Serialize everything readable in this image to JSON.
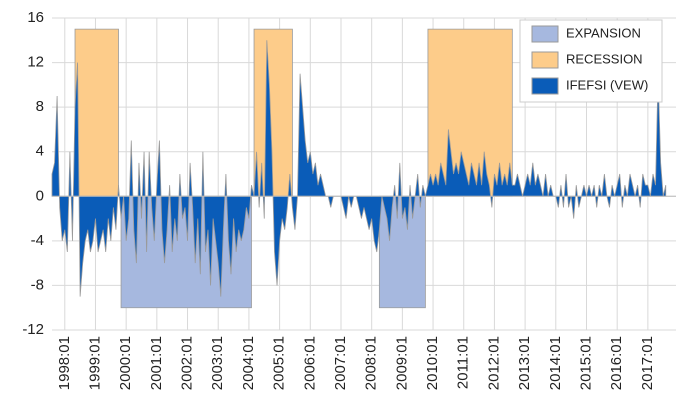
{
  "chart_data": {
    "type": "area",
    "categories": [
      null,
      null,
      null,
      null,
      null,
      "1998:01",
      null,
      null,
      null,
      null,
      null,
      null,
      null,
      null,
      null,
      null,
      null,
      "1999:01",
      null,
      null,
      null,
      null,
      null,
      null,
      null,
      null,
      null,
      null,
      null,
      "2000:01",
      null,
      null,
      null,
      null,
      null,
      null,
      null,
      null,
      null,
      null,
      null,
      "2001:01",
      null,
      null,
      null,
      null,
      null,
      null,
      null,
      null,
      null,
      null,
      null,
      "2002:01",
      null,
      null,
      null,
      null,
      null,
      null,
      null,
      null,
      null,
      null,
      null,
      "2003:01",
      null,
      null,
      null,
      null,
      null,
      null,
      null,
      null,
      null,
      null,
      null,
      "2004:01",
      null,
      null,
      null,
      null,
      null,
      null,
      null,
      null,
      null,
      null,
      null,
      "2005:01",
      null,
      null,
      null,
      null,
      null,
      null,
      null,
      null,
      null,
      null,
      null,
      "2006:01",
      null,
      null,
      null,
      null,
      null,
      null,
      null,
      null,
      null,
      null,
      null,
      "2007:01",
      null,
      null,
      null,
      null,
      null,
      null,
      null,
      null,
      null,
      null,
      null,
      "2008:01",
      null,
      null,
      null,
      null,
      null,
      null,
      null,
      null,
      null,
      null,
      null,
      "2009:01",
      null,
      null,
      null,
      null,
      null,
      null,
      null,
      null,
      null,
      null,
      null,
      "2010:01",
      null,
      null,
      null,
      null,
      null,
      null,
      null,
      null,
      null,
      null,
      null,
      "2011:01",
      null,
      null,
      null,
      null,
      null,
      null,
      null,
      null,
      null,
      null,
      null,
      "2012:01",
      null,
      null,
      null,
      null,
      null,
      null,
      null,
      null,
      null,
      null,
      null,
      "2013:01",
      null,
      null,
      null,
      null,
      null,
      null,
      null,
      null,
      null,
      null,
      null,
      "2014:01",
      null,
      null,
      null,
      null,
      null,
      null,
      null,
      null,
      null,
      null,
      null,
      "2015:01",
      null,
      null,
      null,
      null,
      null,
      null,
      null,
      null,
      null,
      null,
      null,
      "2016:01",
      null,
      null,
      null,
      null,
      null,
      null,
      null,
      null,
      null,
      null,
      null,
      "2017:01",
      null,
      null,
      null,
      null,
      null,
      null,
      null,
      null,
      null,
      null,
      null
    ],
    "series": [
      {
        "name": "EXPANSION",
        "color": "#a6b8df",
        "values": [
          null,
          null,
          null,
          null,
          null,
          null,
          null,
          null,
          null,
          null,
          null,
          null,
          null,
          null,
          null,
          null,
          null,
          null,
          null,
          null,
          null,
          null,
          null,
          null,
          null,
          null,
          null,
          -10,
          -10,
          -10,
          -10,
          -10,
          -10,
          -10,
          -10,
          -10,
          -10,
          -10,
          -10,
          -10,
          -10,
          -10,
          -10,
          -10,
          -10,
          -10,
          -10,
          -10,
          -10,
          -10,
          -10,
          -10,
          -10,
          -10,
          -10,
          -10,
          -10,
          -10,
          -10,
          -10,
          -10,
          -10,
          -10,
          -10,
          -10,
          -10,
          -10,
          -10,
          -10,
          -10,
          -10,
          -10,
          -10,
          -10,
          -10,
          -10,
          -10,
          -10,
          -10,
          null,
          null,
          null,
          null,
          null,
          null,
          null,
          null,
          null,
          null,
          null,
          null,
          null,
          null,
          null,
          null,
          null,
          null,
          null,
          null,
          null,
          null,
          null,
          null,
          null,
          null,
          null,
          null,
          null,
          null,
          null,
          null,
          null,
          null,
          null,
          null,
          null,
          null,
          null,
          null,
          null,
          null,
          null,
          null,
          null,
          null,
          null,
          null,
          null,
          -10,
          -10,
          -10,
          -10,
          -10,
          -10,
          -10,
          -10,
          -10,
          -10,
          -10,
          -10,
          -10,
          -10,
          -10,
          -10,
          -10,
          -10,
          -10,
          null,
          null,
          null,
          null,
          null,
          null,
          null,
          null,
          null,
          null,
          null,
          null,
          null,
          null,
          null,
          null,
          null,
          null,
          null,
          null,
          null,
          null,
          null,
          null,
          null,
          null,
          null,
          null,
          null,
          null,
          null,
          null,
          null,
          null,
          null,
          null,
          null,
          null,
          null,
          null,
          null,
          null,
          null,
          null,
          null,
          null,
          null,
          null,
          null,
          null,
          null,
          null,
          null,
          null,
          null,
          null,
          null,
          null,
          null,
          null,
          null,
          null,
          null,
          null,
          null,
          null,
          null,
          null,
          null,
          null,
          null,
          null,
          null,
          null,
          null,
          null,
          null,
          null,
          null,
          null,
          null,
          null,
          null,
          null,
          null,
          null,
          null,
          null,
          null,
          null,
          null,
          null,
          null,
          null,
          null,
          null,
          null,
          null
        ]
      },
      {
        "name": "RECESSION",
        "color": "#fdcc8a",
        "values": [
          null,
          null,
          null,
          null,
          null,
          null,
          null,
          null,
          null,
          15,
          15,
          15,
          15,
          15,
          15,
          15,
          15,
          15,
          15,
          15,
          15,
          15,
          15,
          15,
          15,
          15,
          15,
          null,
          null,
          null,
          null,
          null,
          null,
          null,
          null,
          null,
          null,
          null,
          null,
          null,
          null,
          null,
          null,
          null,
          null,
          null,
          null,
          null,
          null,
          null,
          null,
          null,
          null,
          null,
          null,
          null,
          null,
          null,
          null,
          null,
          null,
          null,
          null,
          null,
          null,
          null,
          null,
          null,
          null,
          null,
          null,
          null,
          null,
          null,
          null,
          null,
          null,
          null,
          null,
          15,
          15,
          15,
          15,
          15,
          15,
          15,
          15,
          15,
          15,
          15,
          15,
          15,
          15,
          15,
          15,
          null,
          null,
          null,
          null,
          null,
          null,
          null,
          null,
          null,
          null,
          null,
          null,
          null,
          null,
          null,
          null,
          null,
          null,
          null,
          null,
          null,
          null,
          null,
          null,
          null,
          null,
          null,
          null,
          null,
          null,
          null,
          null,
          null,
          null,
          null,
          null,
          null,
          null,
          null,
          null,
          null,
          null,
          null,
          null,
          null,
          null,
          null,
          null,
          null,
          null,
          null,
          null,
          15,
          15,
          15,
          15,
          15,
          15,
          15,
          15,
          15,
          15,
          15,
          15,
          15,
          15,
          15,
          15,
          15,
          15,
          15,
          15,
          15,
          15,
          15,
          15,
          15,
          15,
          15,
          15,
          15,
          15,
          15,
          15,
          15,
          15,
          null,
          null,
          null,
          null,
          null,
          null,
          null,
          null,
          null,
          null,
          null,
          null,
          null,
          null,
          null,
          null,
          null,
          null,
          null,
          null,
          null,
          null,
          null,
          null,
          null,
          null,
          null,
          null,
          null,
          null,
          null,
          null,
          null,
          null,
          null,
          null,
          null,
          null,
          null,
          null,
          null,
          null,
          null,
          null,
          null,
          null,
          null,
          null,
          null,
          null,
          null,
          null,
          null,
          null,
          null,
          null,
          null,
          null,
          null,
          null,
          null,
          null,
          null,
          null
        ]
      },
      {
        "name": "IFEFSI (VEW)",
        "color": "#0a5cb8",
        "values": [
          2,
          3,
          9,
          -1,
          -4,
          -3,
          -5,
          4,
          -4,
          8,
          12,
          -9,
          -6,
          -4,
          -3,
          -5,
          -4,
          -2,
          -5,
          -4,
          -3,
          -5,
          -2,
          -4,
          -1,
          -3,
          1,
          -2,
          0,
          -4,
          -2,
          5,
          -3,
          -6,
          3,
          -2,
          4,
          -5,
          4,
          -1,
          -4,
          1,
          5,
          -3,
          -6,
          -3,
          1,
          -5,
          -2,
          -4,
          2,
          -2,
          -1,
          -4,
          3,
          -1,
          -6,
          -2,
          -7,
          4,
          -5,
          -3,
          -8,
          -2,
          -4,
          -6,
          -9,
          -3,
          2,
          -4,
          -7,
          -2,
          -5,
          -3,
          -4,
          -3,
          -1,
          -2,
          1,
          0,
          4,
          -1,
          3,
          -2,
          14,
          10,
          4,
          -5,
          -8,
          -4,
          -2,
          -3,
          -1,
          2,
          -1,
          -3,
          0,
          11,
          8,
          5,
          3,
          4,
          2,
          3,
          1,
          2,
          1,
          0,
          0,
          -1,
          0,
          0,
          0,
          0,
          -1,
          -2,
          0,
          -1,
          0,
          0,
          -1,
          -2,
          -1,
          -2,
          -3,
          -2,
          -4,
          -5,
          -3,
          0,
          -1,
          -2,
          -4,
          -1,
          1,
          -2,
          3,
          -2,
          -1,
          -3,
          1,
          -2,
          0,
          2,
          -1,
          1,
          0,
          1,
          2,
          1,
          2,
          1,
          3,
          2,
          1,
          6,
          4,
          2,
          3,
          2,
          4,
          3,
          2,
          1,
          3,
          2,
          1,
          3,
          1,
          4,
          2,
          1,
          -1,
          2,
          1,
          3,
          1,
          2,
          1,
          3,
          1,
          1,
          2,
          1,
          0,
          1,
          2,
          1,
          3,
          1,
          2,
          1,
          0,
          2,
          0,
          1,
          0,
          0,
          -1,
          1,
          -1,
          2,
          -1,
          0,
          -2,
          1,
          -1,
          0,
          1,
          0,
          1,
          0,
          1,
          -1,
          1,
          0,
          2,
          0,
          -1,
          1,
          0,
          1,
          2,
          -1,
          1,
          0,
          2,
          1,
          0,
          1,
          -1,
          2,
          1,
          1,
          0,
          2,
          1,
          11,
          3,
          0,
          1,
          null,
          null,
          null,
          null
        ]
      }
    ],
    "ylim": [
      -12,
      16
    ],
    "yticks": [
      -12,
      -8,
      -4,
      0,
      4,
      8,
      12,
      16
    ],
    "grid": true,
    "legend": "upper right"
  }
}
